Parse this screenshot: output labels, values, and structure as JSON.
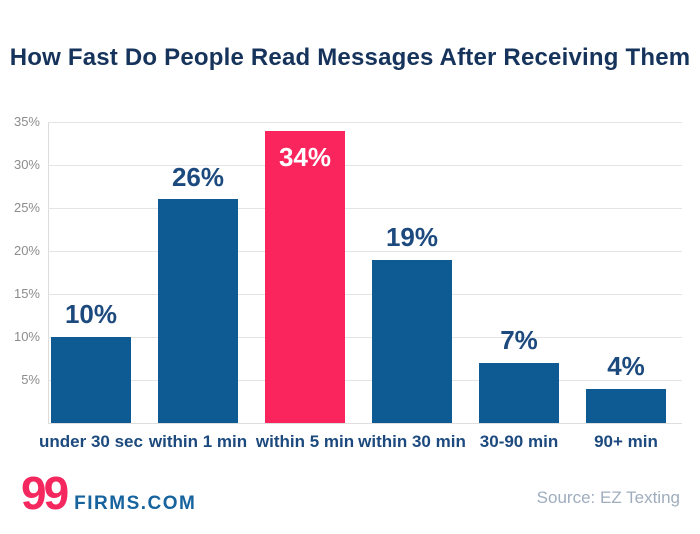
{
  "chart_data": {
    "type": "bar",
    "title": "How Fast Do People Read Messages After Receiving Them",
    "categories": [
      "under 30 sec",
      "within 1 min",
      "within 5 min",
      "within 30 min",
      "30-90 min",
      "90+ min"
    ],
    "values": [
      10,
      26,
      34,
      19,
      7,
      4
    ],
    "value_labels": [
      "10%",
      "26%",
      "34%",
      "19%",
      "7%",
      "4%"
    ],
    "highlight_index": 2,
    "xlabel": "",
    "ylabel": "",
    "ylim": [
      0,
      35
    ],
    "y_ticks": [
      {
        "value": 35,
        "label": "35%"
      },
      {
        "value": 30,
        "label": "30%"
      },
      {
        "value": 25,
        "label": "25%"
      },
      {
        "value": 20,
        "label": "20%"
      },
      {
        "value": 15,
        "label": "15%"
      },
      {
        "value": 10,
        "label": "10%"
      },
      {
        "value": 5,
        "label": "5%"
      }
    ],
    "grid": true,
    "legend": "none",
    "colors": {
      "bar": "#0e5b94",
      "highlight": "#f9255c",
      "value_label": "#1d4a7e",
      "value_label_highlight": "#ffffff",
      "x_label": "#1d4a7e",
      "y_tick": "#8c8c8c",
      "grid": "#e4e4e4"
    }
  },
  "footer": {
    "logo_99": "99",
    "logo_firms": "FIRMS.COM",
    "logo_pink": "#f5275f",
    "logo_blue": "#16639e",
    "source": "Source: EZ Texting"
  }
}
